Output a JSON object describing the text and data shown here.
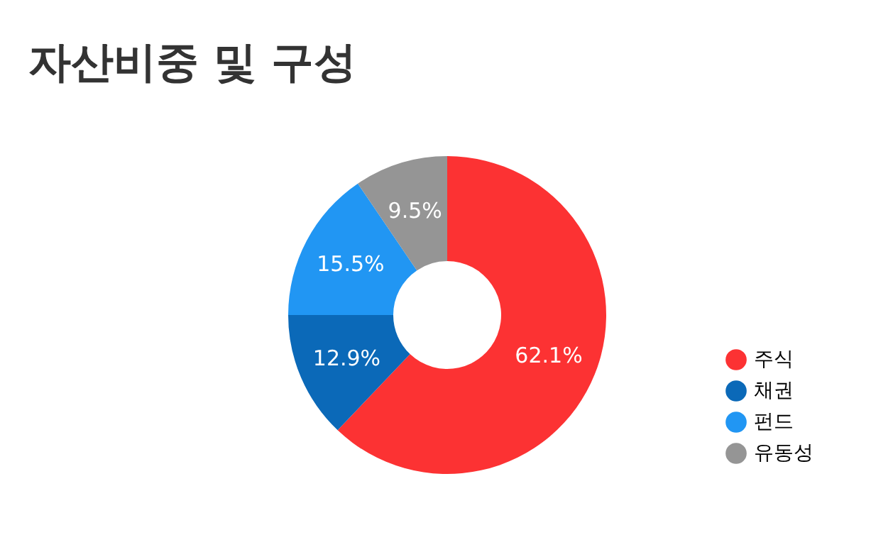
{
  "chart_data": {
    "type": "donut",
    "title": "자산비중 및 구성",
    "categories": [
      "주식",
      "채권",
      "펀드",
      "유동성"
    ],
    "values": [
      62.1,
      12.9,
      15.5,
      9.5
    ],
    "colors": [
      "#fc3233",
      "#0b69b8",
      "#2196f3",
      "#959595"
    ],
    "value_labels": [
      "62.1%",
      "12.9%",
      "15.5%",
      "9.5%"
    ],
    "legend": "bottom right"
  }
}
